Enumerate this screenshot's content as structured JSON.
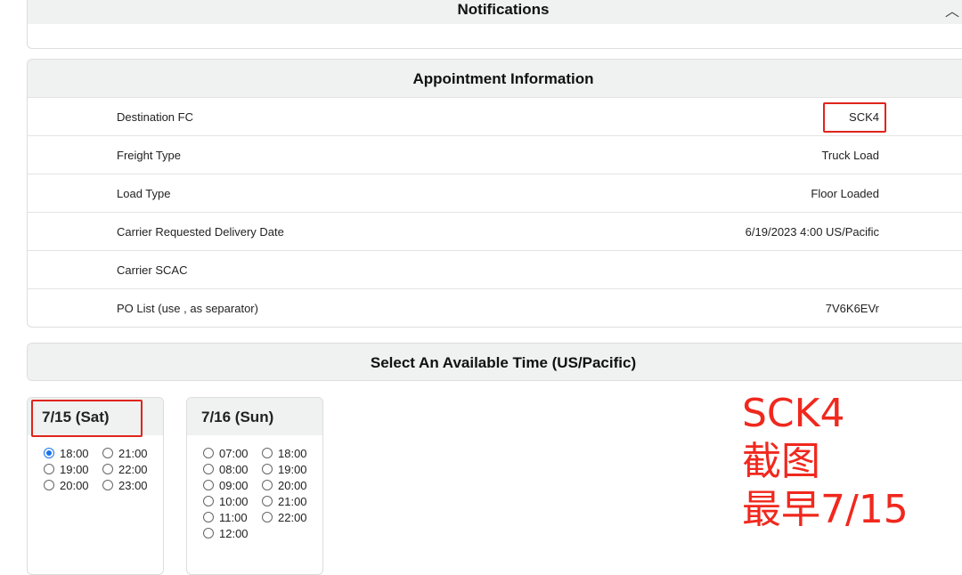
{
  "notifications": {
    "title": "Notifications"
  },
  "appointment": {
    "title": "Appointment Information",
    "rows": [
      {
        "label": "Destination FC",
        "value": "SCK4"
      },
      {
        "label": "Freight Type",
        "value": "Truck Load"
      },
      {
        "label": "Load Type",
        "value": "Floor Loaded"
      },
      {
        "label": "Carrier Requested Delivery Date",
        "value": "6/19/2023 4:00 US/Pacific"
      },
      {
        "label": "Carrier SCAC",
        "value": ""
      },
      {
        "label": "PO List (use , as separator)",
        "value": "7V6K6EVr"
      }
    ]
  },
  "select": {
    "title": "Select An Available Time (US/Pacific)"
  },
  "days": [
    {
      "label": "7/15 (Sat)",
      "slots": [
        "18:00",
        "21:00",
        "19:00",
        "22:00",
        "20:00",
        "23:00"
      ],
      "selected": "18:00"
    },
    {
      "label": "7/16 (Sun)",
      "slots": [
        "07:00",
        "18:00",
        "08:00",
        "19:00",
        "09:00",
        "20:00",
        "10:00",
        "21:00",
        "11:00",
        "22:00",
        "12:00"
      ],
      "selected": null
    }
  ],
  "annotation": {
    "line1": "SCK4",
    "line2": "截图",
    "line3": "最早7/15",
    "color": "#f0281e"
  }
}
